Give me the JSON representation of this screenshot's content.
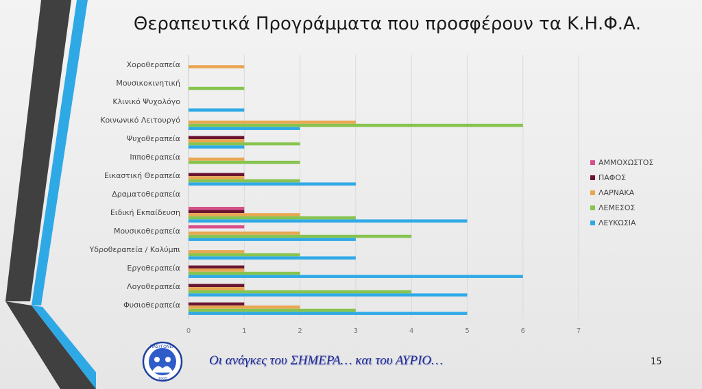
{
  "slide": {
    "title": "Θεραπευτικά Προγράμματα που προσφέρουν τα Κ.Η.Φ.Α.",
    "footer_text": "Οι ανάγκες του ΣΗΜΕΡΑ… και του ΑΥΡΙΟ…",
    "page_number": "15",
    "logo_text": "ΠΑΣΥΓΟΝΕΑ",
    "logo_year": "1997"
  },
  "colors": {
    "ΑΜΜΟΧΩΣΤΟΣ": "#d64f8b",
    "ΠΑΦΟΣ": "#6b1532",
    "ΛΑΡΝΑΚΑ": "#e8a650",
    "ΛΕΜΕΣΟΣ": "#86c44f",
    "ΛΕΥΚΩΣΙΑ": "#2ea9e6"
  },
  "chart_data": {
    "type": "bar",
    "orientation": "horizontal",
    "title": "",
    "xlabel": "",
    "ylabel": "",
    "xlim": [
      0,
      7
    ],
    "x_ticks": [
      "0",
      "1",
      "2",
      "3",
      "4",
      "5",
      "6",
      "7"
    ],
    "grid": "vertical",
    "legend_position": "right",
    "categories": [
      "Χοροθεραπεία",
      "Μουσικοκινητική",
      "Κλινικό Ψυχολόγο",
      "Κοινωνικό Λειτουργό",
      "Ψυχοθεραπεία",
      "Ιπποθεραπεία",
      "Εικαστική Θεραπεία",
      "Δραματοθεραπεία",
      "Ειδική Εκπαίδευση",
      "Μουσικοθεραπεία",
      "Υδροθεραπεία / Κολύμπι",
      "Εργοθεραπεία",
      "Λογοθεραπεία",
      "Φυσιοθεραπεία"
    ],
    "series": [
      {
        "name": "ΑΜΜΟΧΩΣΤΟΣ",
        "values": [
          0,
          0,
          0,
          0,
          0,
          0,
          0,
          0,
          1,
          1,
          0,
          0,
          0,
          0
        ]
      },
      {
        "name": "ΠΑΦΟΣ",
        "values": [
          0,
          0,
          0,
          0,
          1,
          0,
          1,
          0,
          1,
          0,
          0,
          1,
          1,
          1
        ]
      },
      {
        "name": "ΛΑΡΝΑΚΑ",
        "values": [
          1,
          0,
          0,
          3,
          1,
          1,
          1,
          0,
          2,
          2,
          1,
          1,
          1,
          2
        ]
      },
      {
        "name": "ΛΕΜΕΣΟΣ",
        "values": [
          0,
          1,
          0,
          6,
          2,
          2,
          2,
          0,
          3,
          4,
          2,
          2,
          4,
          3
        ]
      },
      {
        "name": "ΛΕΥΚΩΣΙΑ",
        "values": [
          0,
          0,
          1,
          2,
          1,
          0,
          3,
          0,
          5,
          3,
          3,
          6,
          5,
          5
        ]
      }
    ]
  }
}
